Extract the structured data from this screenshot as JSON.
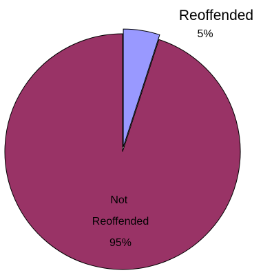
{
  "chart_data": {
    "type": "pie",
    "categories": [
      "Reoffended",
      "Not Reoffended"
    ],
    "values": [
      5,
      95
    ],
    "value_labels": [
      "5%",
      "95%"
    ],
    "colors": [
      "#9999ff",
      "#993366"
    ],
    "exploded": "Reoffended",
    "legend": "none"
  }
}
